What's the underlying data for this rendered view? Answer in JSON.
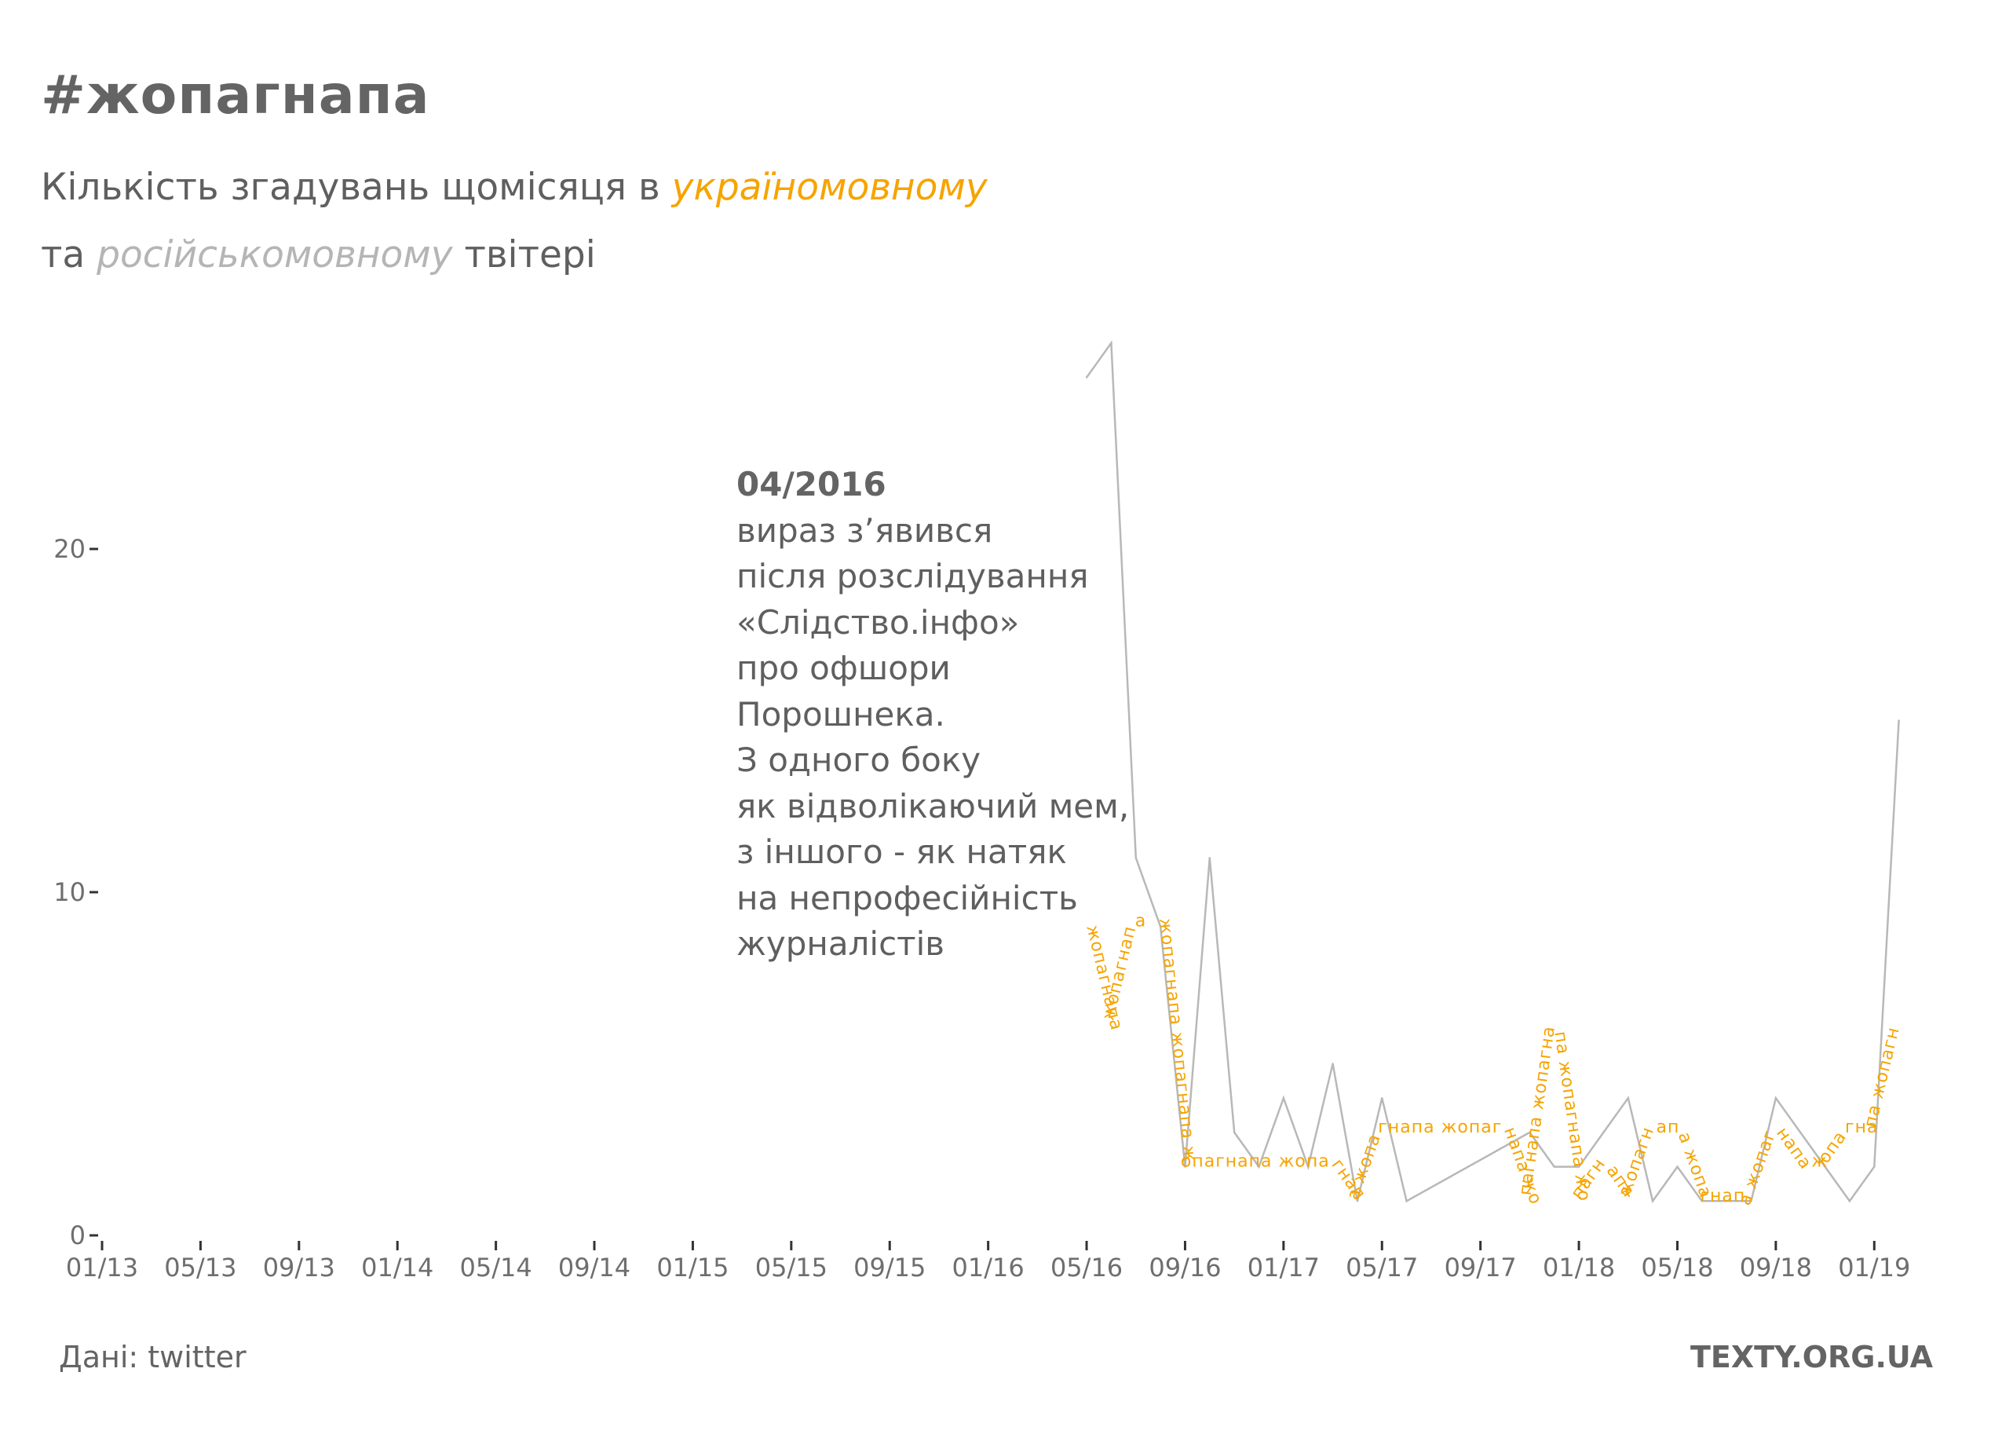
{
  "header": {
    "title": "#жопагнапа",
    "subtitle_line1_prefix": "Кількість згадувань щомісяця в ",
    "subtitle_ua_word": "україномовному",
    "subtitle_line2_prefix": "та ",
    "subtitle_ru_word": "російськомовному",
    "subtitle_line2_suffix": " твітері"
  },
  "annotation": {
    "date": "04/2016",
    "lines": [
      "вираз з’явився",
      "після розслідування",
      "«Слідство.інфо»",
      "про офшори",
      "Порошнека.",
      "З одного боку",
      "як відволікаючий мем,",
      "з іншого - як натяк",
      "на непрофесійність",
      "журналістів"
    ]
  },
  "footer": {
    "source": "Дані: twitter",
    "brand": "TEXTY.ORG.UA"
  },
  "colors": {
    "ua": "#f6a400",
    "ru": "#b8b8b8",
    "text": "#5f5f5f",
    "axis": "#333333"
  },
  "chart_data": {
    "type": "line",
    "title": "#жопагнапа",
    "xlabel": "",
    "ylabel": "",
    "x_ticks": [
      "01/13",
      "05/13",
      "09/13",
      "01/14",
      "05/14",
      "09/14",
      "01/15",
      "05/15",
      "09/15",
      "01/16",
      "05/16",
      "09/16",
      "01/17",
      "05/17",
      "09/17",
      "01/18",
      "05/18",
      "09/18",
      "01/19"
    ],
    "x_range": [
      "2013-01",
      "2019-03"
    ],
    "y_ticks": [
      0,
      10,
      20
    ],
    "ylim": [
      0,
      27
    ],
    "grid": false,
    "legend": "none",
    "series": [
      {
        "name": "російськомовному",
        "style": "line",
        "points": [
          {
            "x": "2016-05",
            "y": 25
          },
          {
            "x": "2016-06",
            "y": 26
          },
          {
            "x": "2016-07",
            "y": 11
          },
          {
            "x": "2016-08",
            "y": 9
          },
          {
            "x": "2016-09",
            "y": 2
          },
          {
            "x": "2016-10",
            "y": 11
          },
          {
            "x": "2016-11",
            "y": 3
          },
          {
            "x": "2016-12",
            "y": 2
          },
          {
            "x": "2017-01",
            "y": 4
          },
          {
            "x": "2017-02",
            "y": 2
          },
          {
            "x": "2017-03",
            "y": 5
          },
          {
            "x": "2017-04",
            "y": 1
          },
          {
            "x": "2017-05",
            "y": 4
          },
          {
            "x": "2017-06",
            "y": 1
          },
          {
            "x": "2017-11",
            "y": 3
          },
          {
            "x": "2017-12",
            "y": 2
          },
          {
            "x": "2018-01",
            "y": 2
          },
          {
            "x": "2018-02",
            "y": 3
          },
          {
            "x": "2018-03",
            "y": 4
          },
          {
            "x": "2018-04",
            "y": 1
          },
          {
            "x": "2018-05",
            "y": 2
          },
          {
            "x": "2018-06",
            "y": 1
          },
          {
            "x": "2018-07",
            "y": 1
          },
          {
            "x": "2018-08",
            "y": 1
          },
          {
            "x": "2018-09",
            "y": 4
          },
          {
            "x": "2018-10",
            "y": 3
          },
          {
            "x": "2018-11",
            "y": 2
          },
          {
            "x": "2018-12",
            "y": 1
          },
          {
            "x": "2019-01",
            "y": 2
          },
          {
            "x": "2019-02",
            "y": 15
          }
        ]
      },
      {
        "name": "україномовному",
        "style": "text-along-path",
        "path_text": "жопагнапа",
        "points": [
          {
            "x": "2016-05",
            "y": 9
          },
          {
            "x": "2016-06",
            "y": 6
          },
          {
            "x": "2016-07",
            "y": 9
          },
          {
            "x": "2016-08",
            "y": 9
          },
          {
            "x": "2016-09",
            "y": 2
          },
          {
            "x": "2016-10",
            "y": 2
          },
          {
            "x": "2016-11",
            "y": 2
          },
          {
            "x": "2016-12",
            "y": 2
          },
          {
            "x": "2017-01",
            "y": 2
          },
          {
            "x": "2017-02",
            "y": 2
          },
          {
            "x": "2017-03",
            "y": 2
          },
          {
            "x": "2017-04",
            "y": 1
          },
          {
            "x": "2017-05",
            "y": 3
          },
          {
            "x": "2017-06",
            "y": 3
          },
          {
            "x": "2017-07",
            "y": 3
          },
          {
            "x": "2017-08",
            "y": 3
          },
          {
            "x": "2017-09",
            "y": 3
          },
          {
            "x": "2017-10",
            "y": 3
          },
          {
            "x": "2017-11",
            "y": 1
          },
          {
            "x": "2017-12",
            "y": 6
          },
          {
            "x": "2018-01",
            "y": 1
          },
          {
            "x": "2018-02",
            "y": 2
          },
          {
            "x": "2018-03",
            "y": 1
          },
          {
            "x": "2018-04",
            "y": 3
          },
          {
            "x": "2018-05",
            "y": 3
          },
          {
            "x": "2018-06",
            "y": 1
          },
          {
            "x": "2018-07",
            "y": 1
          },
          {
            "x": "2018-08",
            "y": 1
          },
          {
            "x": "2018-09",
            "y": 3
          },
          {
            "x": "2018-10",
            "y": 2
          },
          {
            "x": "2018-11",
            "y": 2
          },
          {
            "x": "2018-12",
            "y": 3
          },
          {
            "x": "2019-01",
            "y": 3
          },
          {
            "x": "2019-02",
            "y": 6
          }
        ]
      }
    ]
  }
}
